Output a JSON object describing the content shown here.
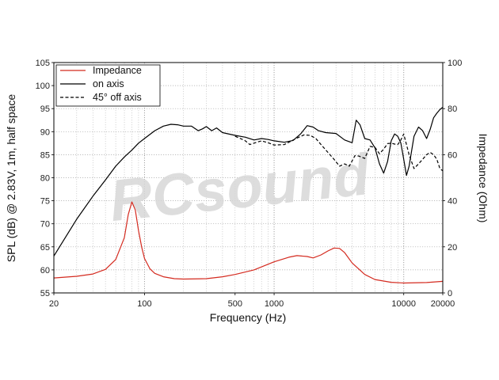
{
  "chart_data": {
    "type": "line",
    "xlabel": "Frequency (Hz)",
    "ylabel": "SPL (dB) @ 2.83V, 1m, half space",
    "y2label": "Impedance (Ohm)",
    "x_scale": "log",
    "xlim": [
      20,
      20000
    ],
    "ylim": [
      55,
      105
    ],
    "y2lim": [
      0,
      100
    ],
    "grid": true,
    "legend_position": "top-left",
    "x_tick_labels": [
      "20",
      "100",
      "500",
      "1000",
      "10000",
      "20000"
    ],
    "x_ticks": [
      20,
      100,
      500,
      1000,
      10000,
      20000
    ],
    "y_ticks": [
      55,
      60,
      65,
      70,
      75,
      80,
      85,
      90,
      95,
      100,
      105
    ],
    "y2_ticks": [
      0,
      20,
      40,
      60,
      80,
      100
    ],
    "watermark": "RCsound",
    "series": [
      {
        "name": "Impedance",
        "axis": "right",
        "color": "#d42a1f",
        "dash": "solid",
        "x": [
          20,
          30,
          40,
          50,
          60,
          70,
          75,
          80,
          85,
          90,
          95,
          100,
          110,
          120,
          140,
          170,
          200,
          300,
          400,
          500,
          700,
          1000,
          1300,
          1500,
          1800,
          2000,
          2300,
          2600,
          2900,
          3200,
          3500,
          4000,
          5000,
          6000,
          8000,
          10000,
          15000,
          20000
        ],
        "y": [
          6.5,
          7.2,
          8.2,
          10.2,
          14.5,
          24,
          34,
          39.5,
          36,
          27,
          20,
          15,
          10.5,
          8.5,
          7,
          6.2,
          6,
          6.2,
          7,
          8,
          10,
          13.5,
          15.5,
          16.2,
          15.8,
          15.2,
          16.5,
          18.2,
          19.5,
          19.3,
          17.5,
          13,
          8,
          5.8,
          4.6,
          4.3,
          4.5,
          5
        ]
      },
      {
        "name": "on axis",
        "axis": "left",
        "color": "#000000",
        "dash": "solid",
        "x": [
          20,
          30,
          40,
          50,
          60,
          70,
          80,
          90,
          100,
          120,
          140,
          160,
          180,
          200,
          230,
          260,
          280,
          300,
          330,
          360,
          400,
          500,
          600,
          700,
          800,
          900,
          1000,
          1200,
          1400,
          1600,
          1800,
          2000,
          2200,
          2500,
          3000,
          3500,
          4000,
          4300,
          4600,
          5000,
          5500,
          6000,
          6500,
          7000,
          7500,
          8000,
          8500,
          9000,
          9500,
          10000,
          10500,
          11000,
          12000,
          13000,
          14000,
          15000,
          16000,
          17000,
          18000,
          19000,
          20000
        ],
        "y": [
          63,
          71,
          76,
          79.5,
          82.5,
          84.5,
          86,
          87.5,
          88.5,
          90.2,
          91.2,
          91.6,
          91.5,
          91.2,
          91.2,
          90.2,
          90.6,
          91.1,
          90.2,
          90.8,
          89.8,
          89.2,
          88.8,
          88.2,
          88.5,
          88.3,
          88,
          87.7,
          88.1,
          89.5,
          91.3,
          91,
          90.2,
          89.8,
          89.6,
          88.2,
          87.6,
          92.5,
          91.5,
          88.5,
          88.2,
          86.5,
          83,
          81,
          83.5,
          88,
          89.5,
          89,
          87.5,
          84,
          80.5,
          82.5,
          89,
          91,
          90.2,
          88.5,
          90.5,
          93,
          94,
          94.8,
          95.3
        ]
      },
      {
        "name": "45° off axis",
        "axis": "left",
        "color": "#000000",
        "dash": "dashed",
        "x": [
          500,
          550,
          600,
          650,
          700,
          800,
          900,
          1000,
          1200,
          1500,
          1700,
          1900,
          2100,
          2300,
          2600,
          2900,
          3200,
          3500,
          3800,
          4200,
          4500,
          5000,
          5500,
          6000,
          6500,
          7000,
          7500,
          8000,
          8500,
          9000,
          9500,
          10000,
          10500,
          11000,
          12000,
          13000,
          14000,
          15000,
          16000,
          17000,
          18000,
          19000,
          20000
        ],
        "y": [
          89,
          88.5,
          88,
          87.2,
          87.5,
          88,
          87.6,
          87.1,
          87.2,
          88.6,
          89.3,
          89.2,
          88.5,
          87.2,
          85.5,
          84,
          82.5,
          83,
          82.5,
          84.8,
          84.7,
          84.2,
          86.8,
          86.6,
          85.2,
          86.2,
          87.4,
          87.5,
          87.3,
          87.2,
          88.2,
          89.5,
          87.2,
          85,
          82,
          83,
          84,
          85,
          85.5,
          85,
          84,
          82,
          81.5
        ]
      }
    ]
  }
}
